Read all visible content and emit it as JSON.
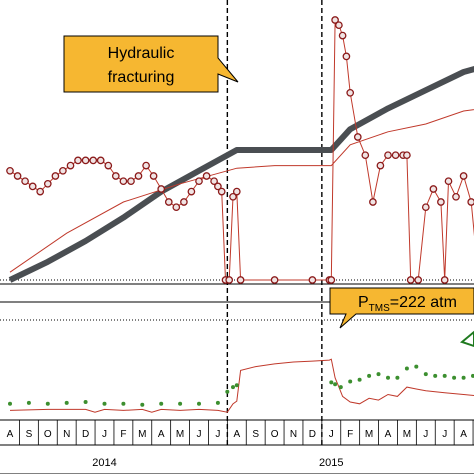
{
  "chart_data": {
    "type": "line",
    "title": "",
    "annotations": {
      "hydraulic_fracturing": {
        "line1": "Hydraulic",
        "line2": "fracturing"
      },
      "ptms": {
        "prefix": "P",
        "subscript": "TMS",
        "suffix": "=222 atm"
      }
    },
    "x_axis": {
      "month_labels": [
        "A",
        "S",
        "O",
        "N",
        "D",
        "J",
        "F",
        "M",
        "A",
        "M",
        "J",
        "J",
        "A",
        "S",
        "O",
        "N",
        "D",
        "J",
        "F",
        "M",
        "A",
        "M",
        "J",
        "J",
        "A"
      ],
      "year_labels": [
        {
          "label": "2014",
          "month_index": 5
        },
        {
          "label": "2015",
          "month_index": 17
        }
      ],
      "event_lines_month_index": [
        12,
        17
      ]
    },
    "upper_panel": {
      "series": [
        {
          "key": "trend",
          "color": "#4a4e52",
          "points": [
            [
              0,
              0
            ],
            [
              2,
              7
            ],
            [
              4,
              15
            ],
            [
              6,
              24
            ],
            [
              8,
              34
            ],
            [
              10,
              42
            ],
            [
              12,
              50
            ],
            [
              14,
              50
            ],
            [
              16,
              50
            ],
            [
              17,
              50
            ],
            [
              18,
              58
            ],
            [
              20,
              66
            ],
            [
              22,
              73
            ],
            [
              24,
              80
            ],
            [
              25,
              82
            ]
          ]
        },
        {
          "key": "model",
          "color": "#c0392b",
          "points": [
            [
              0,
              3
            ],
            [
              3,
              18
            ],
            [
              6,
              30
            ],
            [
              9,
              37
            ],
            [
              12,
              43
            ],
            [
              14,
              44
            ],
            [
              17,
              44
            ],
            [
              18,
              52
            ],
            [
              20,
              57
            ],
            [
              22,
              60
            ],
            [
              24,
              65
            ],
            [
              25,
              66
            ]
          ]
        },
        {
          "key": "measured",
          "color": "#c0392b",
          "points": [
            [
              0,
              42
            ],
            [
              0.4,
              40
            ],
            [
              0.8,
              38
            ],
            [
              1.2,
              36
            ],
            [
              1.6,
              34
            ],
            [
              2,
              37
            ],
            [
              2.4,
              40
            ],
            [
              2.8,
              42
            ],
            [
              3.2,
              44
            ],
            [
              3.6,
              46
            ],
            [
              4,
              46
            ],
            [
              4.4,
              46
            ],
            [
              4.8,
              46
            ],
            [
              5.2,
              44
            ],
            [
              5.6,
              40
            ],
            [
              6,
              38
            ],
            [
              6.4,
              38
            ],
            [
              6.8,
              40
            ],
            [
              7.2,
              44
            ],
            [
              7.6,
              40
            ],
            [
              8,
              35
            ],
            [
              8.4,
              30
            ],
            [
              8.8,
              28
            ],
            [
              9.2,
              30
            ],
            [
              9.6,
              34
            ],
            [
              10,
              38
            ],
            [
              10.4,
              40
            ],
            [
              10.8,
              38
            ],
            [
              11,
              36
            ],
            [
              11.2,
              34
            ],
            [
              11.4,
              0
            ],
            [
              11.6,
              0
            ],
            [
              11.8,
              32
            ],
            [
              12,
              34
            ],
            [
              12.2,
              0
            ],
            [
              14,
              0
            ],
            [
              16,
              0
            ],
            [
              16.9,
              0
            ],
            [
              17,
              0
            ],
            [
              17.2,
              100
            ],
            [
              17.4,
              98
            ],
            [
              17.6,
              94
            ],
            [
              17.8,
              86
            ],
            [
              18,
              72
            ],
            [
              18.4,
              55
            ],
            [
              18.8,
              48
            ],
            [
              19.2,
              30
            ],
            [
              19.6,
              44
            ],
            [
              20,
              48
            ],
            [
              20.4,
              48
            ],
            [
              20.8,
              48
            ],
            [
              21,
              48
            ],
            [
              21.2,
              0
            ],
            [
              21.6,
              0
            ],
            [
              22,
              28
            ],
            [
              22.4,
              35
            ],
            [
              22.8,
              30
            ],
            [
              23,
              0
            ],
            [
              23.2,
              38
            ],
            [
              23.6,
              32
            ],
            [
              24,
              40
            ],
            [
              24.4,
              30
            ],
            [
              24.8,
              0
            ],
            [
              25,
              0
            ]
          ]
        }
      ]
    },
    "lower_panel": {
      "series": [
        {
          "key": "model",
          "color": "#c0392b",
          "points": [
            [
              0,
              5
            ],
            [
              2,
              6
            ],
            [
              4,
              6
            ],
            [
              4.5,
              3
            ],
            [
              5,
              6
            ],
            [
              6,
              5
            ],
            [
              7,
              6
            ],
            [
              7.5,
              3
            ],
            [
              8,
              6
            ],
            [
              9,
              5
            ],
            [
              10,
              6
            ],
            [
              11,
              5
            ],
            [
              11.5,
              3
            ],
            [
              11.8,
              12
            ],
            [
              12,
              15
            ],
            [
              12.2,
              48
            ],
            [
              13,
              52
            ],
            [
              14,
              55
            ],
            [
              15,
              57
            ],
            [
              16,
              58
            ],
            [
              16.9,
              59
            ],
            [
              17,
              60
            ],
            [
              17.2,
              40
            ],
            [
              17.4,
              30
            ],
            [
              17.6,
              20
            ],
            [
              18,
              14
            ],
            [
              18.5,
              12
            ],
            [
              19,
              18
            ],
            [
              19.5,
              16
            ],
            [
              20,
              22
            ],
            [
              20.5,
              20
            ],
            [
              21,
              30
            ],
            [
              21.5,
              28
            ],
            [
              22,
              26
            ],
            [
              23,
              24
            ],
            [
              24,
              22
            ],
            [
              25,
              20
            ]
          ]
        },
        {
          "key": "green",
          "color": "#3c8f2f",
          "points": [
            [
              0,
              12
            ],
            [
              1,
              13
            ],
            [
              2,
              12
            ],
            [
              3,
              13
            ],
            [
              4,
              14
            ],
            [
              5,
              12
            ],
            [
              6,
              12
            ],
            [
              7,
              11
            ],
            [
              8,
              12
            ],
            [
              9,
              12
            ],
            [
              10,
              12
            ],
            [
              11,
              13
            ],
            [
              11.5,
              25
            ],
            [
              11.8,
              30
            ],
            [
              12,
              32
            ],
            [
              17,
              35
            ],
            [
              17.2,
              33
            ],
            [
              17.5,
              30
            ],
            [
              18,
              36
            ],
            [
              18.5,
              38
            ],
            [
              19,
              42
            ],
            [
              19.5,
              44
            ],
            [
              20,
              40
            ],
            [
              20.5,
              40
            ],
            [
              21,
              50
            ],
            [
              21.5,
              52
            ],
            [
              22,
              44
            ],
            [
              22.5,
              42
            ],
            [
              23,
              42
            ],
            [
              23.5,
              40
            ],
            [
              24,
              40
            ],
            [
              24.5,
              42
            ],
            [
              25,
              48
            ]
          ]
        }
      ]
    },
    "legend": "none",
    "grid": false
  }
}
